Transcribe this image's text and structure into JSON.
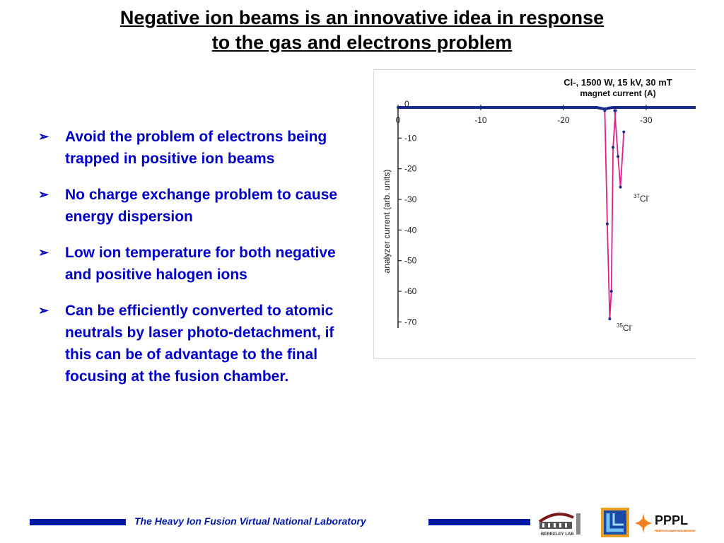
{
  "title_line1": "Negative ion beams is an innovative idea in response",
  "title_line2": "to the gas and electrons problem",
  "bullets": [
    "Avoid the problem of electrons being trapped in positive ion beams",
    "No charge exchange problem to cause energy dispersion",
    "Low ion temperature for both negative and positive halogen ions",
    "Can be efficiently converted to atomic neutrals by laser photo-detachment, if this can be of advantage to the final focusing at the fusion chamber."
  ],
  "chart_data": {
    "type": "line",
    "title": "Cl-, 1500 W, 15 kV, 30 mT",
    "xlabel": "magnet current (A)",
    "ylabel": "analyzer current (arb. units)",
    "xlim": [
      0,
      -36
    ],
    "ylim": [
      -72,
      0
    ],
    "x_ticks": [
      "0",
      "-10",
      "-20",
      "-30"
    ],
    "y_ticks": [
      "0",
      "-10",
      "-20",
      "-30",
      "-40",
      "-50",
      "-60",
      "-70"
    ],
    "annotations": [
      {
        "text": "37",
        "sup": true,
        "after": "Cl",
        "charge": "-"
      },
      {
        "text": "35",
        "sup": true,
        "after": "Cl",
        "charge": "-"
      }
    ],
    "series": [
      {
        "color": "#1a2a8a",
        "x": [
          0,
          -5,
          -10,
          -15,
          -20,
          -24,
          -25,
          -25.5,
          -26,
          -36
        ],
        "y": [
          0,
          0,
          0,
          0,
          0,
          0,
          -0.5,
          -0.2,
          0,
          0
        ]
      },
      {
        "color": "#e0208a",
        "x": [
          -25,
          -25.3,
          -25.6,
          -25.8,
          -26,
          -26.3
        ],
        "y": [
          -1,
          -38,
          -69,
          -60,
          -13,
          -1
        ]
      },
      {
        "color": "#e0208a",
        "x": [
          -26.2,
          -26.6,
          -26.9,
          -27.3
        ],
        "y": [
          -1,
          -16,
          -26,
          -8
        ]
      }
    ]
  },
  "footer_text": "The Heavy Ion Fusion Virtual National Laboratory",
  "logos": {
    "berkeley_text": "BERKELEY LAB",
    "pppl_text": "PPPL",
    "pppl_sub": "PRINCETON PLASMA PHYSICS LABORATORY"
  }
}
